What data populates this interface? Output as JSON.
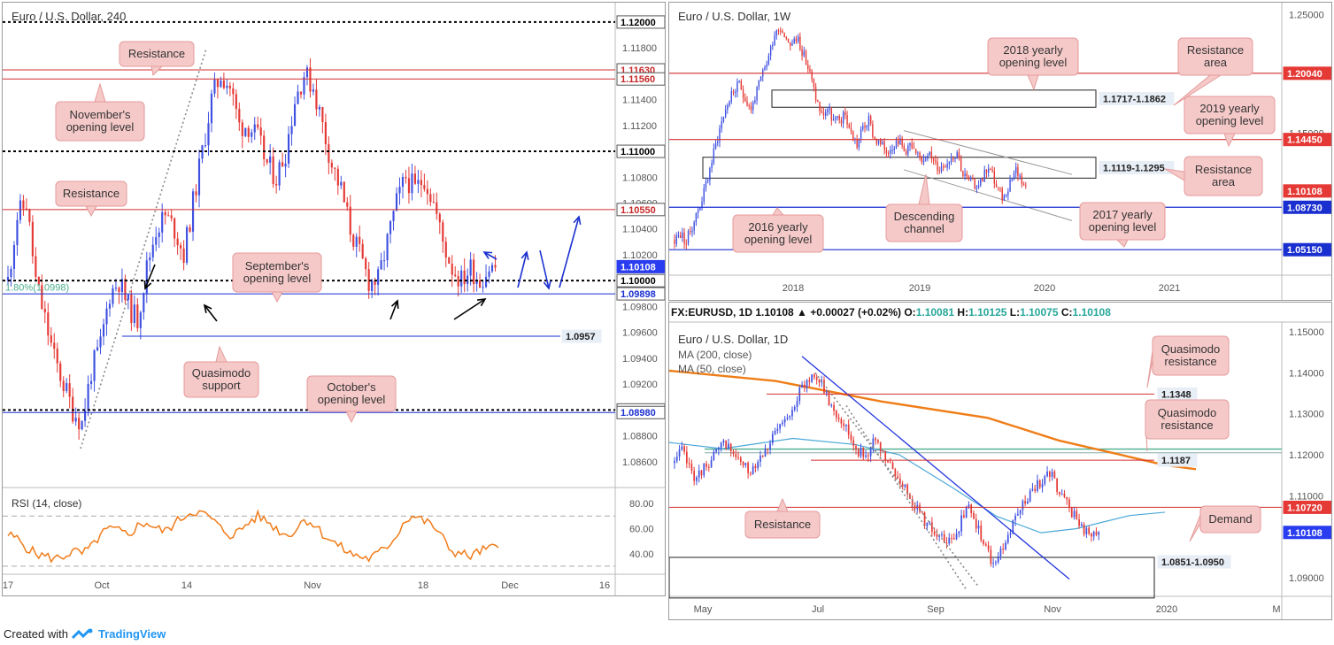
{
  "colors": {
    "bull": "#3f51e0",
    "bear": "#e53935",
    "red_line": "#d32f2f",
    "blue_line": "#1a2fd0",
    "callout_bg": "#f6c9c9",
    "callout_border": "#e59a9a",
    "ma200": "#ef7d18",
    "ma50": "#4aa8d8",
    "rsi": "#f07c1a",
    "green_fib": "#4caf8f"
  },
  "chart_data": [
    {
      "id": "h4",
      "type": "candlestick",
      "title": "Euro / U.S. Dollar, 240",
      "x_tick_labels": [
        "17",
        "Oct",
        "14",
        "Nov",
        "18",
        "Dec",
        "16"
      ],
      "ylim": [
        1.084,
        1.1215
      ],
      "y_tick_labels": [
        "1.08600",
        "1.08800",
        "1.09200",
        "1.09400",
        "1.09600",
        "1.09800",
        "1.10200",
        "1.10400",
        "1.10600",
        "1.10800",
        "1.11200",
        "1.11400",
        "1.11800"
      ],
      "levels": [
        {
          "value": 1.12,
          "label": "1.12000",
          "style": "black-dotted"
        },
        {
          "value": 1.1163,
          "label": "1.11630",
          "style": "red"
        },
        {
          "value": 1.1156,
          "label": "1.11560",
          "style": "red"
        },
        {
          "value": 1.11,
          "label": "1.11000",
          "style": "black-dotted"
        },
        {
          "value": 1.1055,
          "label": "1.10550",
          "style": "red"
        },
        {
          "value": 1.10108,
          "label": "1.10108",
          "style": "current"
        },
        {
          "value": 1.1,
          "label": "1.10000",
          "style": "black-dotted"
        },
        {
          "value": 1.09898,
          "label": "1.09898",
          "style": "blue"
        },
        {
          "value": 1.0957,
          "label": "1.0957",
          "style": "blue-partial"
        },
        {
          "value": 1.09,
          "label": "1.09000",
          "style": "black-dotted"
        },
        {
          "value": 1.0898,
          "label": "1.08980",
          "style": "blue"
        }
      ],
      "close_path": [
        1.1,
        1.105,
        1.106,
        1.1,
        1.097,
        1.094,
        1.092,
        1.09,
        1.089,
        1.093,
        1.095,
        1.099,
        1.1,
        1.098,
        1.097,
        1.101,
        1.104,
        1.105,
        1.104,
        1.102,
        1.106,
        1.11,
        1.114,
        1.116,
        1.115,
        1.112,
        1.112,
        1.111,
        1.109,
        1.108,
        1.11,
        1.114,
        1.116,
        1.115,
        1.112,
        1.109,
        1.107,
        1.104,
        1.102,
        1.1,
        1.1,
        1.103,
        1.106,
        1.108,
        1.107,
        1.108,
        1.106,
        1.103,
        1.101,
        1.1,
        1.101,
        1.1,
        1.101,
        1.101
      ],
      "annotations": [
        "Resistance",
        "November's\nopening level",
        "Resistance",
        "September's\nopening level",
        "Quasimodo\nsupport",
        "October's\nopening level"
      ],
      "fib_label": "1.80%(1.0998)",
      "rsi": {
        "title": "RSI (14, close)",
        "y_tick_labels": [
          "80.00",
          "60.00",
          "40.00"
        ],
        "ylim": [
          25,
          90
        ],
        "values": [
          55,
          52,
          45,
          40,
          38,
          36,
          38,
          42,
          40,
          45,
          55,
          60,
          58,
          55,
          62,
          65,
          60,
          58,
          64,
          70,
          74,
          72,
          68,
          60,
          55,
          58,
          65,
          70,
          66,
          60,
          55,
          58,
          68,
          64,
          56,
          50,
          45,
          40,
          38,
          36,
          40,
          46,
          55,
          68,
          70,
          66,
          62,
          52,
          42,
          40,
          38,
          42,
          44,
          45
        ]
      }
    },
    {
      "id": "weekly",
      "type": "candlestick",
      "title": "Euro / U.S. Dollar, 1W",
      "x_tick_labels": [
        "2018",
        "2019",
        "2020",
        "2021"
      ],
      "ylim": [
        1.03,
        1.26
      ],
      "y_tick_labels": [
        "1.25000",
        "1.15000",
        "1.10000",
        "1.05000"
      ],
      "levels": [
        {
          "value": 1.2004,
          "label": "1.20040",
          "style": "red"
        },
        {
          "value": 1.1445,
          "label": "1.14450",
          "style": "red"
        },
        {
          "value": 1.10108,
          "label": "1.10108",
          "style": "current-red"
        },
        {
          "value": 1.0873,
          "label": "1.08730",
          "style": "blue"
        },
        {
          "value": 1.0515,
          "label": "1.05150",
          "style": "blue"
        }
      ],
      "zones": [
        {
          "low": 1.1717,
          "high": 1.1862,
          "label": "1.1717-1.1862"
        },
        {
          "low": 1.1119,
          "high": 1.1295,
          "label": "1.1119-1.1295"
        }
      ],
      "close_path": [
        1.06,
        1.065,
        1.058,
        1.072,
        1.085,
        1.1,
        1.12,
        1.14,
        1.16,
        1.175,
        1.185,
        1.19,
        1.18,
        1.17,
        1.185,
        1.2,
        1.215,
        1.235,
        1.24,
        1.23,
        1.225,
        1.23,
        1.215,
        1.2,
        1.18,
        1.165,
        1.17,
        1.16,
        1.16,
        1.165,
        1.15,
        1.14,
        1.155,
        1.16,
        1.145,
        1.14,
        1.135,
        1.14,
        1.145,
        1.135,
        1.14,
        1.13,
        1.128,
        1.135,
        1.125,
        1.12,
        1.125,
        1.13,
        1.135,
        1.115,
        1.11,
        1.105,
        1.11,
        1.12,
        1.115,
        1.1,
        1.095,
        1.11,
        1.12,
        1.11,
        1.101
      ],
      "annotations": [
        "2018 yearly\nopening level",
        "Resistance\narea",
        "2019 yearly\nopening level",
        "Resistance\narea",
        "Descending\nchannel",
        "2016 yearly\nopening level",
        "2017 yearly\nopening level"
      ]
    },
    {
      "id": "daily",
      "type": "candlestick",
      "title": "Euro / U.S. Dollar, 1D",
      "header": {
        "symbol": "FX:EURUSD, 1D",
        "last": "1.10108",
        "change": "+0.00027 (+0.02%)",
        "open": "1.10081",
        "high": "1.10125",
        "low": "1.10075",
        "close": "1.10108"
      },
      "ma_labels": [
        "MA (200, close)",
        "MA (50, close)"
      ],
      "x_tick_labels": [
        "May",
        "Jul",
        "Sep",
        "Nov",
        "2020",
        "M"
      ],
      "ylim": [
        1.0855,
        1.1515
      ],
      "y_tick_labels": [
        "1.15000",
        "1.14000",
        "1.13000",
        "1.12000",
        "1.11000",
        "1.09000"
      ],
      "levels": [
        {
          "value": 1.1348,
          "label": "1.1348",
          "style": "red-partial"
        },
        {
          "value": 1.1187,
          "label": "1.1187",
          "style": "red-partial"
        },
        {
          "value": 1.1072,
          "label": "1.10720",
          "style": "red"
        },
        {
          "value": 1.10108,
          "label": "1.10108",
          "style": "current"
        }
      ],
      "zones": [
        {
          "low": 1.0851,
          "high": 1.095,
          "label": "1.0851-1.0950"
        }
      ],
      "close_path": [
        1.118,
        1.121,
        1.117,
        1.114,
        1.117,
        1.119,
        1.121,
        1.123,
        1.12,
        1.118,
        1.116,
        1.118,
        1.121,
        1.123,
        1.126,
        1.128,
        1.132,
        1.135,
        1.138,
        1.14,
        1.137,
        1.133,
        1.13,
        1.128,
        1.124,
        1.121,
        1.12,
        1.123,
        1.121,
        1.118,
        1.115,
        1.113,
        1.11,
        1.107,
        1.104,
        1.102,
        1.1,
        1.098,
        1.1,
        1.104,
        1.107,
        1.103,
        1.099,
        1.094,
        1.095,
        1.099,
        1.103,
        1.107,
        1.11,
        1.112,
        1.114,
        1.116,
        1.112,
        1.109,
        1.106,
        1.103,
        1.101,
        1.1,
        1.101
      ],
      "annotations": [
        "Quasimodo\nresistance",
        "Quasimodo\nresistance",
        "Resistance",
        "Demand"
      ]
    }
  ],
  "footer": {
    "created_with": "Created with",
    "brand": "TradingView"
  }
}
